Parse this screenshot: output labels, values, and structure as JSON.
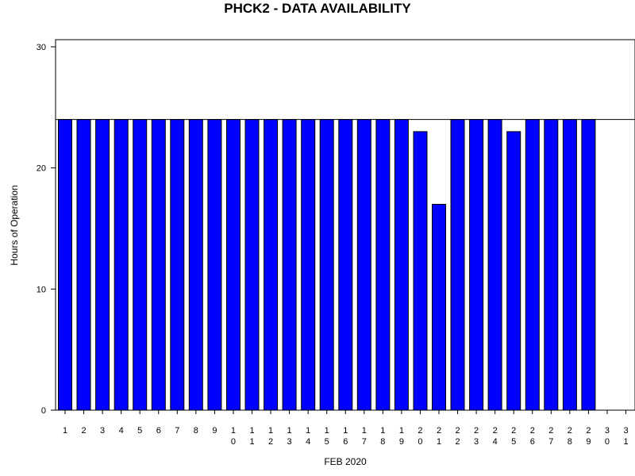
{
  "chart_data": {
    "type": "bar",
    "title": "PHCK2 - DATA AVAILABILITY",
    "xlabel": "FEB 2020",
    "ylabel": "Hours of Operation",
    "ylim": [
      0,
      30
    ],
    "yticks": [
      0,
      10,
      20,
      30
    ],
    "reference_line": 24,
    "categories": [
      "1",
      "2",
      "3",
      "4",
      "5",
      "6",
      "7",
      "8",
      "9",
      "10",
      "11",
      "12",
      "13",
      "14",
      "15",
      "16",
      "17",
      "18",
      "19",
      "20",
      "21",
      "22",
      "23",
      "24",
      "25",
      "26",
      "27",
      "28",
      "29",
      "30",
      "31"
    ],
    "values": [
      24,
      24,
      24,
      24,
      24,
      24,
      24,
      24,
      24,
      24,
      24,
      24,
      24,
      24,
      24,
      24,
      24,
      24,
      24,
      23,
      17,
      24,
      24,
      24,
      23,
      24,
      24,
      24,
      24,
      null,
      null
    ],
    "bar_color": "#0000ff",
    "grid": false
  }
}
